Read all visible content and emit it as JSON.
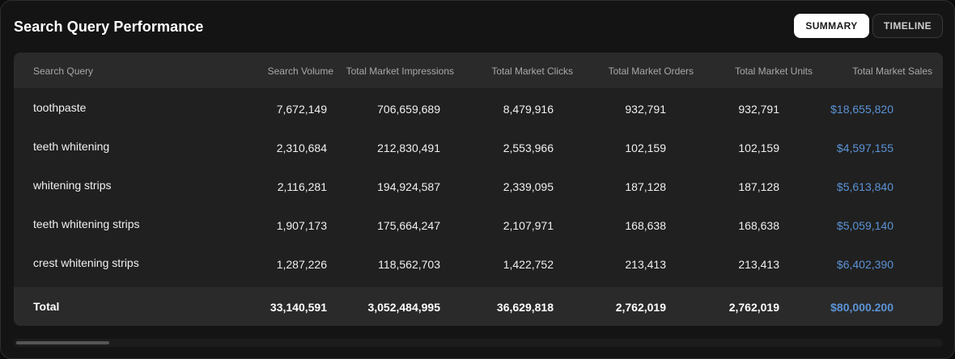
{
  "header": {
    "title": "Search Query Performance",
    "tabs": [
      {
        "label": "SUMMARY",
        "active": true
      },
      {
        "label": "TIMELINE",
        "active": false
      }
    ]
  },
  "table": {
    "columns": [
      "Search Query",
      "Search Volume",
      "Total Market Impressions",
      "Total Market Clicks",
      "Total Market Orders",
      "Total Market Units",
      "Total Market Sales"
    ],
    "rows": [
      [
        "toothpaste",
        "7,672,149",
        "706,659,689",
        "8,479,916",
        "932,791",
        "932,791",
        "$18,655,820"
      ],
      [
        "teeth whitening",
        "2,310,684",
        "212,830,491",
        "2,553,966",
        "102,159",
        "102,159",
        "$4,597,155"
      ],
      [
        "whitening strips",
        "2,116,281",
        "194,924,587",
        "2,339,095",
        "187,128",
        "187,128",
        "$5,613,840"
      ],
      [
        "teeth whitening strips",
        "1,907,173",
        "175,664,247",
        "2,107,971",
        "168,638",
        "168,638",
        "$5,059,140"
      ],
      [
        "crest whitening strips",
        "1,287,226",
        "118,562,703",
        "1,422,752",
        "213,413",
        "213,413",
        "$6,402,390"
      ]
    ],
    "total": [
      "Total",
      "33,140,591",
      "3,052,484,995",
      "36,629,818",
      "2,762,019",
      "2,762,019",
      "$80,000.200"
    ]
  },
  "colors": {
    "accent_sales": "#5b93d6",
    "background": "#141414",
    "header_row": "#2a2a2a"
  }
}
